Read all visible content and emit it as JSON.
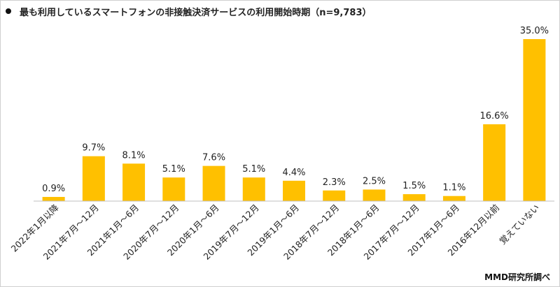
{
  "chart_data": {
    "type": "bar",
    "title": "最も利用しているスマートフォンの非接触決済サービスの利用開始時期（n=9,783）",
    "categories": [
      "2022年1月以降",
      "2021年7月～12月",
      "2021年1月～6月",
      "2020年7月～12月",
      "2020年1月～6月",
      "2019年7月～12月",
      "2019年1月～6月",
      "2018年7月～12月",
      "2018年1月～6月",
      "2017年7月～12月",
      "2017年1月～6月",
      "2016年12月以前",
      "覚えていない"
    ],
    "values": [
      0.9,
      9.7,
      8.1,
      5.1,
      7.6,
      5.1,
      4.4,
      2.3,
      2.5,
      1.5,
      1.1,
      16.6,
      35.0
    ],
    "value_labels": [
      "0.9%",
      "9.7%",
      "8.1%",
      "5.1%",
      "7.6%",
      "5.1%",
      "4.4%",
      "2.3%",
      "2.5%",
      "1.5%",
      "1.1%",
      "16.6%",
      "35.0%"
    ],
    "ylim": [
      0,
      40
    ],
    "grid": false,
    "colors": {
      "bar": "#FFC000",
      "axis": "#bfbfbf",
      "text": "#222222"
    }
  },
  "source": "MMD研究所調べ"
}
